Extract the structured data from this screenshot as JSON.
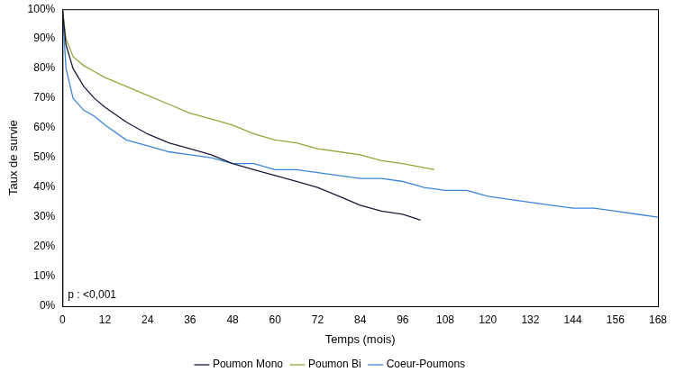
{
  "chart_data": {
    "type": "line",
    "x_label": "Temps (mois)",
    "y_label": "Taux de survie",
    "annotations": [
      "p : <0,001"
    ],
    "xlim": [
      0,
      168
    ],
    "xticks": [
      0,
      12,
      24,
      36,
      48,
      60,
      72,
      84,
      96,
      108,
      120,
      132,
      144,
      156,
      168
    ],
    "ylim": [
      0,
      100
    ],
    "yticks": [
      {
        "value": 0,
        "label": "0%"
      },
      {
        "value": 10,
        "label": "10%"
      },
      {
        "value": 20,
        "label": "20%"
      },
      {
        "value": 30,
        "label": "30%"
      },
      {
        "value": 40,
        "label": "40%"
      },
      {
        "value": 50,
        "label": "50%"
      },
      {
        "value": 60,
        "label": "60%"
      },
      {
        "value": 70,
        "label": "70%"
      },
      {
        "value": 80,
        "label": "80%"
      },
      {
        "value": 90,
        "label": "90%"
      },
      {
        "value": 100,
        "label": "100%"
      }
    ],
    "grid": false,
    "legend": "bottom",
    "series": [
      {
        "name": "Poumon Mono",
        "color": "#1a1a3a",
        "marker": "none",
        "line_style": "solid",
        "x": [
          0,
          1,
          3,
          6,
          9,
          12,
          18,
          24,
          30,
          36,
          42,
          48,
          54,
          60,
          66,
          72,
          78,
          84,
          90,
          96,
          101
        ],
        "values": [
          100,
          88,
          80,
          74,
          70,
          67,
          62,
          58,
          55,
          53,
          51,
          48,
          46,
          44,
          42,
          40,
          37,
          34,
          32,
          31,
          29
        ]
      },
      {
        "name": "Poumon Bi",
        "color": "#8fa83a",
        "marker": "none",
        "line_style": "solid",
        "x": [
          0,
          1,
          3,
          6,
          9,
          12,
          18,
          24,
          30,
          36,
          42,
          48,
          54,
          60,
          66,
          72,
          78,
          84,
          90,
          96,
          105
        ],
        "values": [
          100,
          90,
          84,
          81,
          79,
          77,
          74,
          71,
          68,
          65,
          63,
          61,
          58,
          56,
          55,
          53,
          52,
          51,
          49,
          48,
          46
        ]
      },
      {
        "name": "Coeur-Poumons",
        "color": "#3d85d8",
        "marker": "none",
        "line_style": "solid",
        "x": [
          0,
          1,
          3,
          6,
          9,
          12,
          18,
          24,
          30,
          36,
          42,
          48,
          54,
          60,
          66,
          72,
          78,
          84,
          90,
          96,
          102,
          108,
          114,
          120,
          126,
          132,
          138,
          144,
          150,
          156,
          162,
          168
        ],
        "values": [
          100,
          80,
          70,
          66,
          64,
          61,
          56,
          54,
          52,
          51,
          50,
          48,
          48,
          46,
          46,
          45,
          44,
          43,
          43,
          42,
          40,
          39,
          39,
          37,
          36,
          35,
          34,
          33,
          33,
          32,
          31,
          30
        ]
      }
    ]
  }
}
